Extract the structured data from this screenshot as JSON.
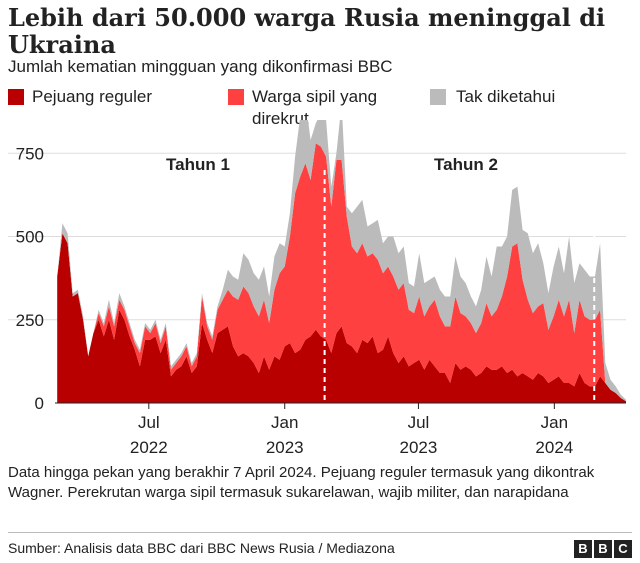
{
  "header": {
    "title": "Lebih dari 50.000 warga Rusia meninggal di Ukraina",
    "subtitle": "Jumlah kematian mingguan yang dikonfirmasi BBC"
  },
  "legend": [
    {
      "label": "Pejuang reguler",
      "color": "#b80000"
    },
    {
      "label": "Warga sipil yang direkrut",
      "color": "#ff4040"
    },
    {
      "label": "Tak diketahui",
      "color": "#bbbbbb"
    }
  ],
  "annotations": {
    "year1": "Tahun 1",
    "year2": "Tahun 2"
  },
  "footnote": "Data hingga pekan yang berakhir 7 April 2024. Pejuang reguler termasuk yang dikontrak Wagner. Perekrutan warga sipil termasuk sukarelawan, wajib militer, dan narapidana",
  "source": "Sumber: Analisis data BBC dari BBC News Rusia / Mediazona",
  "brand": [
    "B",
    "B",
    "C"
  ],
  "chart_data": {
    "type": "area",
    "stacked": true,
    "x_start": "2022-02-24",
    "x_end": "2024-04-07",
    "ylim": [
      0,
      850
    ],
    "yticks": [
      0,
      250,
      500,
      750
    ],
    "xticks": [
      {
        "date": "2022-07-01",
        "line1": "Jul",
        "line2": "2022"
      },
      {
        "date": "2023-01-01",
        "line1": "Jan",
        "line2": "2023"
      },
      {
        "date": "2023-07-01",
        "line1": "Jul",
        "line2": "2023"
      },
      {
        "date": "2024-01-01",
        "line1": "Jan",
        "line2": "2024"
      }
    ],
    "dividers": [
      "2023-02-24",
      "2024-02-24"
    ],
    "dates": [
      "2022-02-27",
      "2022-03-06",
      "2022-03-13",
      "2022-03-20",
      "2022-03-27",
      "2022-04-03",
      "2022-04-10",
      "2022-04-17",
      "2022-04-24",
      "2022-05-01",
      "2022-05-08",
      "2022-05-15",
      "2022-05-22",
      "2022-05-29",
      "2022-06-05",
      "2022-06-12",
      "2022-06-19",
      "2022-06-26",
      "2022-07-03",
      "2022-07-10",
      "2022-07-17",
      "2022-07-24",
      "2022-07-31",
      "2022-08-07",
      "2022-08-14",
      "2022-08-21",
      "2022-08-28",
      "2022-09-04",
      "2022-09-11",
      "2022-09-18",
      "2022-09-25",
      "2022-10-02",
      "2022-10-09",
      "2022-10-16",
      "2022-10-23",
      "2022-10-30",
      "2022-11-06",
      "2022-11-13",
      "2022-11-20",
      "2022-11-27",
      "2022-12-04",
      "2022-12-11",
      "2022-12-18",
      "2022-12-25",
      "2023-01-01",
      "2023-01-08",
      "2023-01-15",
      "2023-01-22",
      "2023-01-29",
      "2023-02-05",
      "2023-02-12",
      "2023-02-19",
      "2023-02-26",
      "2023-03-05",
      "2023-03-12",
      "2023-03-19",
      "2023-03-26",
      "2023-04-02",
      "2023-04-09",
      "2023-04-16",
      "2023-04-23",
      "2023-04-30",
      "2023-05-07",
      "2023-05-14",
      "2023-05-21",
      "2023-05-28",
      "2023-06-04",
      "2023-06-11",
      "2023-06-18",
      "2023-06-25",
      "2023-07-02",
      "2023-07-09",
      "2023-07-16",
      "2023-07-23",
      "2023-07-30",
      "2023-08-06",
      "2023-08-13",
      "2023-08-20",
      "2023-08-27",
      "2023-09-03",
      "2023-09-10",
      "2023-09-17",
      "2023-09-24",
      "2023-10-01",
      "2023-10-08",
      "2023-10-15",
      "2023-10-22",
      "2023-10-29",
      "2023-11-05",
      "2023-11-12",
      "2023-11-19",
      "2023-11-26",
      "2023-12-03",
      "2023-12-10",
      "2023-12-17",
      "2023-12-24",
      "2023-12-31",
      "2024-01-07",
      "2024-01-14",
      "2024-01-21",
      "2024-01-28",
      "2024-02-04",
      "2024-02-11",
      "2024-02-18",
      "2024-02-25",
      "2024-03-03",
      "2024-03-10",
      "2024-03-17",
      "2024-03-24",
      "2024-03-31",
      "2024-04-07"
    ],
    "series": [
      {
        "name": "Pejuang reguler",
        "color": "#b80000",
        "values": [
          380,
          510,
          480,
          320,
          330,
          250,
          140,
          210,
          250,
          200,
          250,
          190,
          280,
          250,
          200,
          160,
          110,
          190,
          190,
          200,
          150,
          190,
          80,
          100,
          110,
          140,
          90,
          110,
          240,
          190,
          150,
          210,
          220,
          230,
          170,
          140,
          150,
          140,
          120,
          90,
          140,
          100,
          140,
          130,
          170,
          180,
          150,
          160,
          190,
          200,
          220,
          200,
          190,
          150,
          210,
          230,
          180,
          170,
          150,
          190,
          180,
          200,
          150,
          160,
          200,
          150,
          120,
          140,
          110,
          120,
          130,
          100,
          130,
          110,
          90,
          90,
          60,
          120,
          100,
          110,
          100,
          80,
          90,
          110,
          100,
          100,
          110,
          90,
          100,
          80,
          90,
          80,
          70,
          90,
          80,
          60,
          70,
          80,
          60,
          60,
          50,
          90,
          60,
          50,
          50,
          80,
          60,
          40,
          30,
          15,
          5
        ]
      },
      {
        "name": "Warga sipil yang direkrut",
        "color": "#ff4040",
        "values": [
          0,
          0,
          0,
          0,
          0,
          0,
          0,
          0,
          20,
          30,
          40,
          40,
          30,
          30,
          30,
          20,
          40,
          40,
          20,
          40,
          30,
          40,
          20,
          20,
          30,
          30,
          20,
          30,
          80,
          40,
          40,
          70,
          90,
          110,
          150,
          170,
          200,
          190,
          170,
          170,
          170,
          140,
          200,
          260,
          240,
          320,
          480,
          520,
          530,
          470,
          560,
          570,
          550,
          440,
          520,
          500,
          380,
          300,
          300,
          290,
          260,
          250,
          280,
          230,
          210,
          230,
          220,
          220,
          170,
          150,
          190,
          160,
          160,
          200,
          170,
          140,
          170,
          200,
          170,
          150,
          140,
          130,
          150,
          190,
          160,
          180,
          210,
          290,
          370,
          400,
          280,
          230,
          200,
          200,
          220,
          160,
          190,
          230,
          200,
          250,
          160,
          220,
          200,
          200,
          200,
          200,
          0,
          0,
          0,
          0,
          0
        ]
      },
      {
        "name": "Tak diketahui",
        "color": "#bbbbbb",
        "values": [
          0,
          30,
          30,
          10,
          10,
          10,
          0,
          0,
          10,
          10,
          20,
          10,
          20,
          10,
          10,
          10,
          10,
          10,
          10,
          10,
          10,
          10,
          10,
          10,
          10,
          10,
          10,
          10,
          10,
          10,
          10,
          10,
          30,
          60,
          60,
          60,
          100,
          100,
          100,
          110,
          100,
          80,
          100,
          90,
          60,
          70,
          110,
          180,
          190,
          120,
          60,
          100,
          110,
          60,
          20,
          170,
          30,
          100,
          140,
          130,
          90,
          90,
          120,
          90,
          90,
          120,
          110,
          110,
          80,
          80,
          130,
          100,
          80,
          70,
          80,
          90,
          90,
          120,
          110,
          100,
          80,
          80,
          100,
          140,
          120,
          190,
          150,
          120,
          170,
          170,
          150,
          200,
          180,
          190,
          120,
          110,
          150,
          160,
          130,
          190,
          150,
          110,
          140,
          130,
          130,
          200,
          60,
          30,
          20,
          10,
          5
        ]
      }
    ]
  }
}
